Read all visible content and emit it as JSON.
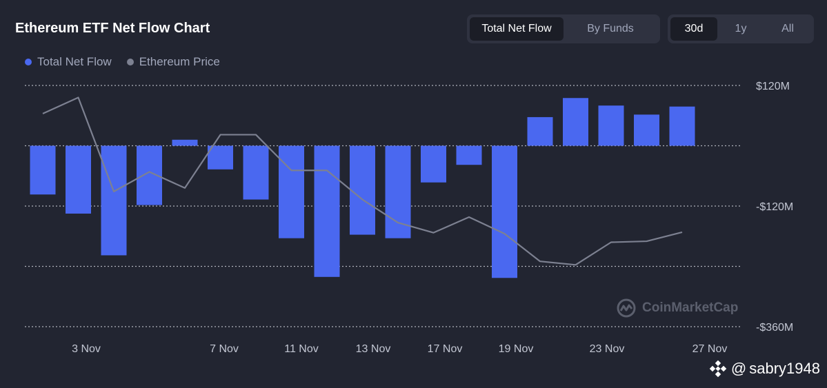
{
  "title": "Ethereum ETF Net Flow Chart",
  "view_tabs": [
    "Total Net Flow",
    "By Funds"
  ],
  "active_view": 0,
  "range_tabs": [
    "30d",
    "1y",
    "All"
  ],
  "active_range": 0,
  "watermark": "CoinMarketCap",
  "user_tag": {
    "at": "@",
    "name": "sabry1948"
  },
  "colors": {
    "bar": "#4a68f0",
    "price": "#7d8191",
    "grid": "#c9ccd6",
    "background": "#222531"
  },
  "chart_data": {
    "type": "bar",
    "x_tick_labels": [
      "3 Nov",
      "7 Nov",
      "11 Nov",
      "13 Nov",
      "17 Nov",
      "19 Nov",
      "23 Nov",
      "27 Nov"
    ],
    "y_tick_labels": [
      "$120M",
      "-$120M",
      "-$360M"
    ],
    "ylim": [
      -360,
      120
    ],
    "y_unit": "$M",
    "grid": true,
    "legend_position": "top-left",
    "series": [
      {
        "name": "Total Net Flow",
        "type": "bar",
        "values": [
          -97,
          -135,
          -218,
          -118,
          12,
          -47,
          -107,
          -184,
          -261,
          -177,
          -184,
          -73,
          -38,
          -263,
          57,
          95,
          80,
          62,
          78
        ]
      },
      {
        "name": "Ethereum Price",
        "type": "line",
        "values": [
          64,
          96,
          -91,
          -52,
          -84,
          22,
          22,
          -49,
          -49,
          -107,
          -153,
          -173,
          -142,
          -175,
          -230,
          -237,
          -192,
          -190,
          -172
        ]
      }
    ]
  }
}
